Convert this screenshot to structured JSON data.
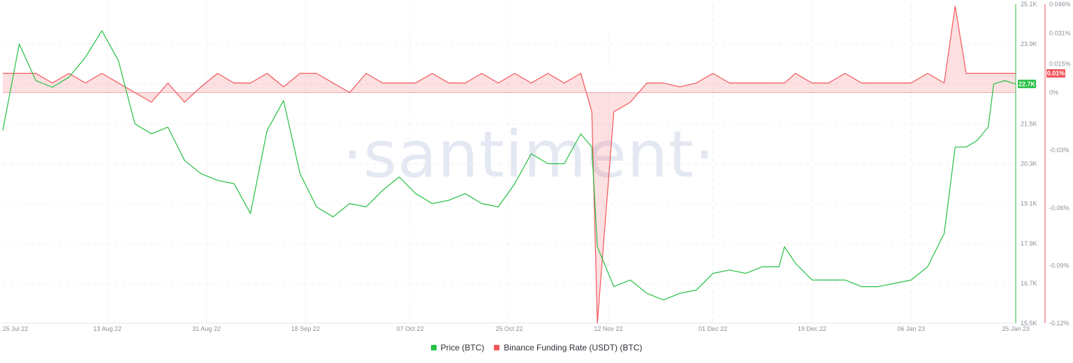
{
  "chart_data": {
    "type": "line",
    "watermark": "·santiment·",
    "x_dates": [
      "25 Jul 22",
      "28 Jul 22",
      "31 Jul 22",
      "03 Aug 22",
      "06 Aug 22",
      "09 Aug 22",
      "12 Aug 22",
      "15 Aug 22",
      "18 Aug 22",
      "21 Aug 22",
      "24 Aug 22",
      "27 Aug 22",
      "30 Aug 22",
      "02 Sep 22",
      "05 Sep 22",
      "08 Sep 22",
      "11 Sep 22",
      "14 Sep 22",
      "17 Sep 22",
      "20 Sep 22",
      "23 Sep 22",
      "26 Sep 22",
      "29 Sep 22",
      "02 Oct 22",
      "05 Oct 22",
      "08 Oct 22",
      "11 Oct 22",
      "14 Oct 22",
      "17 Oct 22",
      "20 Oct 22",
      "23 Oct 22",
      "26 Oct 22",
      "29 Oct 22",
      "01 Nov 22",
      "04 Nov 22",
      "07 Nov 22",
      "09 Nov 22",
      "10 Nov 22",
      "13 Nov 22",
      "16 Nov 22",
      "19 Nov 22",
      "22 Nov 22",
      "25 Nov 22",
      "28 Nov 22",
      "01 Dec 22",
      "04 Dec 22",
      "07 Dec 22",
      "10 Dec 22",
      "13 Dec 22",
      "14 Dec 22",
      "16 Dec 22",
      "19 Dec 22",
      "22 Dec 22",
      "25 Dec 22",
      "28 Dec 22",
      "31 Dec 22",
      "03 Jan 23",
      "06 Jan 23",
      "09 Jan 23",
      "12 Jan 23",
      "14 Jan 23",
      "16 Jan 23",
      "18 Jan 23",
      "20 Jan 23",
      "21 Jan 23",
      "23 Jan 23",
      "25 Jan 23"
    ],
    "series": [
      {
        "name": "Price (BTC)",
        "color": "#26c043",
        "axis": "left",
        "values": [
          21300,
          23900,
          22800,
          22600,
          22900,
          23500,
          24300,
          23400,
          21500,
          21200,
          21400,
          20400,
          20000,
          19800,
          19700,
          18800,
          21300,
          22200,
          20000,
          19000,
          18700,
          19100,
          19000,
          19500,
          19900,
          19400,
          19100,
          19200,
          19400,
          19100,
          19000,
          19700,
          20600,
          20300,
          20300,
          21200,
          20800,
          17800,
          16600,
          16800,
          16400,
          16200,
          16400,
          16500,
          17000,
          17100,
          17000,
          17200,
          17200,
          17800,
          17300,
          16800,
          16800,
          16800,
          16600,
          16600,
          16700,
          16800,
          17200,
          18200,
          20800,
          20800,
          21000,
          21400,
          22700,
          22800,
          22700
        ]
      },
      {
        "name": "Binance Funding Rate (USDT) (BTC)",
        "color": "#f2555a",
        "axis": "right",
        "values": [
          0.01,
          0.01,
          0.01,
          0.005,
          0.01,
          0.005,
          0.01,
          0.005,
          0,
          -0.005,
          0.005,
          -0.005,
          0.003,
          0.01,
          0.005,
          0.005,
          0.01,
          0.003,
          0.01,
          0.01,
          0.005,
          0,
          0.01,
          0.005,
          0.005,
          0.005,
          0.01,
          0.005,
          0.005,
          0.01,
          0.005,
          0.01,
          0.005,
          0.01,
          0.005,
          0.01,
          -0.01,
          -0.12,
          -0.01,
          -0.005,
          0.005,
          0.005,
          0.003,
          0.005,
          0.01,
          0.005,
          0.005,
          0.005,
          0.005,
          0.005,
          0.01,
          0.005,
          0.005,
          0.01,
          0.005,
          0.005,
          0.005,
          0.005,
          0.01,
          0.005,
          0.045,
          0.01,
          0.01,
          0.01,
          0.01,
          0.01,
          0.01
        ]
      }
    ],
    "x_ticks": [
      "25 Jul 22",
      "13 Aug 22",
      "31 Aug 22",
      "18 Sep 22",
      "07 Oct 22",
      "25 Oct 22",
      "12 Nov 22",
      "01 Dec 22",
      "19 Dec 22",
      "06 Jan 23",
      "25 Jan 23"
    ],
    "y_left_ticks": [
      "25.1K",
      "23.9K",
      "22.7K",
      "21.5K",
      "20.3K",
      "19.1K",
      "17.9K",
      "16.7K",
      "15.5K"
    ],
    "y_left_range": [
      15500,
      25100
    ],
    "y_right_ticks": [
      "0.046%",
      "0.031%",
      "0.015%",
      "0%",
      "-0.03%",
      "-0.06%",
      "-0.09%",
      "-0.12%"
    ],
    "y_right_tick_values": [
      0.046,
      0.031,
      0.015,
      0,
      -0.03,
      -0.06,
      -0.09,
      -0.12
    ],
    "y_right_range": [
      -0.12,
      0.046
    ],
    "current_price_badge": "22.7K",
    "current_rate_badge": "0.01%",
    "grid": true,
    "legend_position": "bottom-center"
  }
}
